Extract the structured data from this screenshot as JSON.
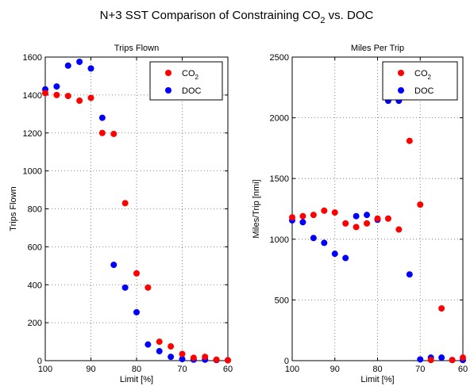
{
  "figure": {
    "title_main": "N+3 SST Comparison of Constraining CO",
    "title_sub": "2",
    "title_tail": " vs. DOC"
  },
  "colors": {
    "co2": "#ff0000",
    "doc": "#0000ff",
    "grid": "#888888",
    "axis": "#000000"
  },
  "chart_data": [
    {
      "type": "scatter",
      "title": "Trips Flown",
      "xlabel": "Limit [%]",
      "ylabel": "Trips Flown",
      "xlim": [
        100,
        60
      ],
      "ylim": [
        0,
        1600
      ],
      "x_reversed": true,
      "xticks": [
        100,
        90,
        80,
        70,
        60
      ],
      "yticks": [
        0,
        200,
        400,
        600,
        800,
        1000,
        1200,
        1400,
        1600
      ],
      "grid": true,
      "legend_position": "top-right",
      "series": [
        {
          "name": "CO2",
          "label_main": "CO",
          "label_sub": "2",
          "color": "#ff0000",
          "x": [
            100,
            97.5,
            95,
            92.5,
            90,
            87.5,
            85,
            82.5,
            80,
            77.5,
            75,
            72.5,
            70,
            67.5,
            65,
            62.5,
            60
          ],
          "y": [
            1410,
            1400,
            1395,
            1370,
            1385,
            1200,
            1195,
            830,
            460,
            385,
            100,
            75,
            35,
            15,
            20,
            5,
            2
          ]
        },
        {
          "name": "DOC",
          "label_main": "DOC",
          "label_sub": "",
          "color": "#0000ff",
          "x": [
            100,
            97.5,
            95,
            92.5,
            90,
            87.5,
            85,
            82.5,
            80,
            77.5,
            75,
            72.5,
            70,
            67.5,
            65,
            62.5,
            60
          ],
          "y": [
            1430,
            1445,
            1555,
            1575,
            1540,
            1280,
            505,
            385,
            255,
            85,
            50,
            20,
            8,
            5,
            5,
            3,
            2
          ]
        }
      ]
    },
    {
      "type": "scatter",
      "title": "Miles Per Trip",
      "xlabel": "Limit [%]",
      "ylabel": "Miles/Trip [nmi]",
      "xlim": [
        100,
        60
      ],
      "ylim": [
        0,
        2500
      ],
      "x_reversed": true,
      "xticks": [
        100,
        90,
        80,
        70,
        60
      ],
      "yticks": [
        0,
        500,
        1000,
        1500,
        2000,
        2500
      ],
      "grid": true,
      "legend_position": "top-right",
      "series": [
        {
          "name": "CO2",
          "label_main": "CO",
          "label_sub": "2",
          "color": "#ff0000",
          "x": [
            100,
            97.5,
            95,
            92.5,
            90,
            87.5,
            85,
            82.5,
            80,
            77.5,
            75,
            72.5,
            70,
            67.5,
            65,
            62.5,
            60
          ],
          "y": [
            1180,
            1190,
            1200,
            1235,
            1220,
            1130,
            1100,
            1130,
            1170,
            1170,
            1080,
            1810,
            1285,
            5,
            430,
            5,
            25
          ]
        },
        {
          "name": "DOC",
          "label_main": "DOC",
          "label_sub": "",
          "color": "#0000ff",
          "x": [
            100,
            97.5,
            95,
            92.5,
            90,
            87.5,
            85,
            82.5,
            80,
            77.5,
            75,
            72.5,
            70,
            67.5,
            65,
            62.5,
            60
          ],
          "y": [
            1155,
            1140,
            1010,
            970,
            880,
            845,
            1190,
            1200,
            1160,
            2140,
            2140,
            710,
            10,
            25,
            25,
            5,
            5
          ]
        }
      ]
    }
  ]
}
